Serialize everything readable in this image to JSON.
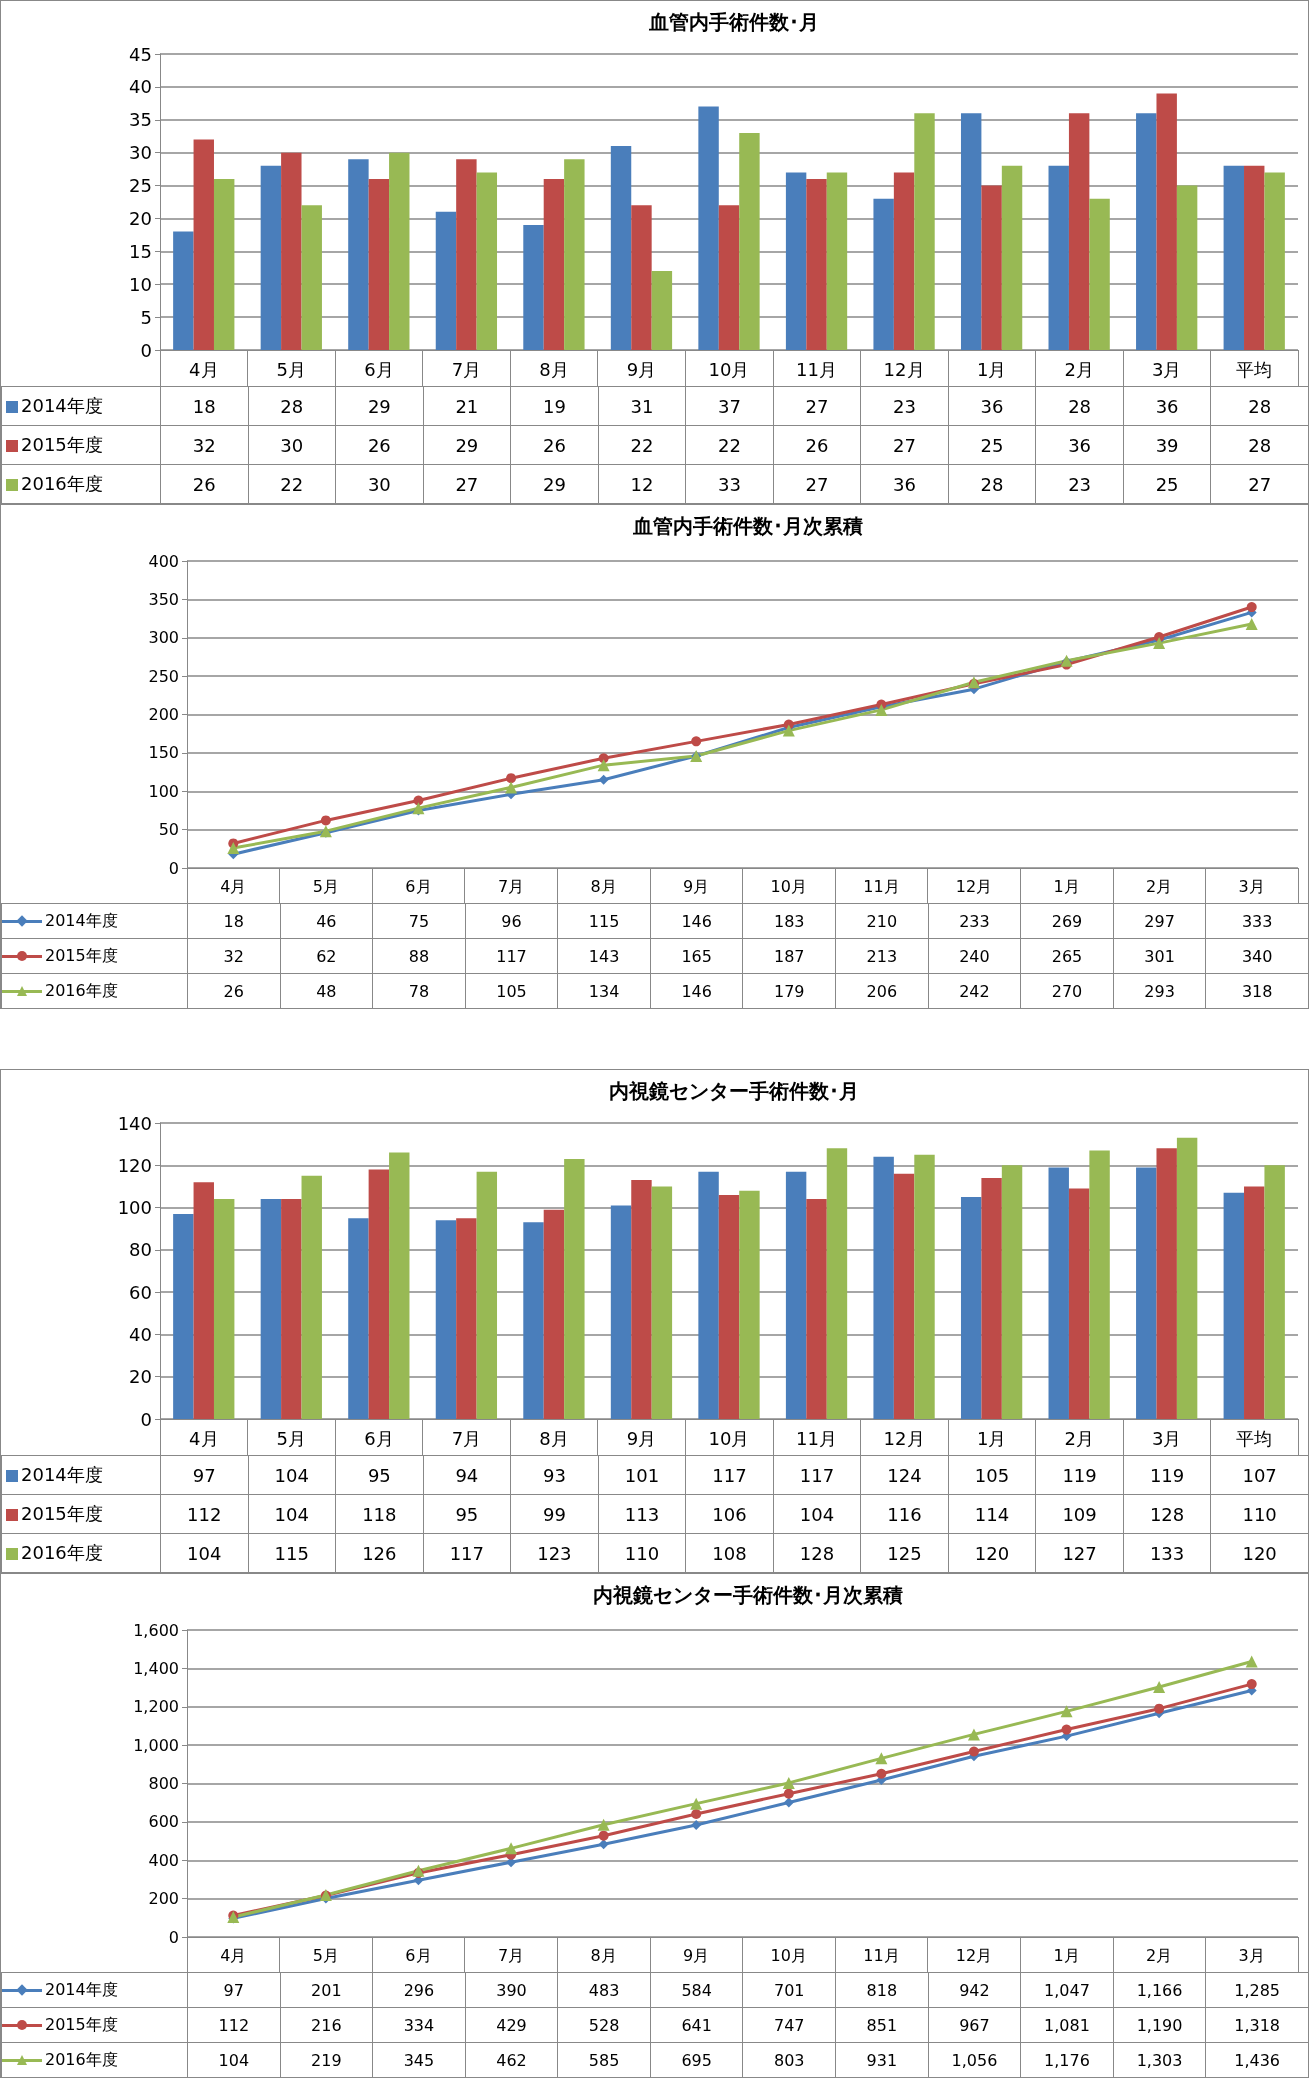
{
  "chart_data": [
    {
      "type": "bar",
      "title": "血管内手術件数･月",
      "categories": [
        "4月",
        "5月",
        "6月",
        "7月",
        "8月",
        "9月",
        "10月",
        "11月",
        "12月",
        "1月",
        "2月",
        "3月",
        "平均"
      ],
      "ylim": [
        0,
        45
      ],
      "yticks": [
        0,
        5,
        10,
        15,
        20,
        25,
        30,
        35,
        40,
        45
      ],
      "grid": "y",
      "legend": "bottom left",
      "data_labels": true,
      "series": [
        {
          "name": "2014年度",
          "color": "#4a7ebb",
          "values": [
            18,
            28,
            29,
            21,
            19,
            31,
            37,
            27,
            23,
            36,
            28,
            36,
            28
          ]
        },
        {
          "name": "2015年度",
          "color": "#be4b48",
          "values": [
            32,
            30,
            26,
            29,
            26,
            22,
            22,
            26,
            27,
            25,
            36,
            39,
            28
          ]
        },
        {
          "name": "2016年度",
          "color": "#98b954",
          "values": [
            26,
            22,
            30,
            27,
            29,
            12,
            33,
            27,
            36,
            28,
            23,
            25,
            27
          ]
        }
      ]
    },
    {
      "type": "line",
      "title": "血管内手術件数･月次累積",
      "categories": [
        "4月",
        "5月",
        "6月",
        "7月",
        "8月",
        "9月",
        "10月",
        "11月",
        "12月",
        "1月",
        "2月",
        "3月"
      ],
      "ylim": [
        0,
        400
      ],
      "yticks": [
        0,
        50,
        100,
        150,
        200,
        250,
        300,
        350,
        400
      ],
      "grid": "y",
      "legend": "bottom left",
      "data_labels": true,
      "series": [
        {
          "name": "2014年度",
          "color": "#4a7ebb",
          "marker": "diamond",
          "values": [
            18,
            46,
            75,
            96,
            115,
            146,
            183,
            210,
            233,
            269,
            297,
            333
          ]
        },
        {
          "name": "2015年度",
          "color": "#be4b48",
          "marker": "circle",
          "values": [
            32,
            62,
            88,
            117,
            143,
            165,
            187,
            213,
            240,
            265,
            301,
            340
          ]
        },
        {
          "name": "2016年度",
          "color": "#98b954",
          "marker": "triangle",
          "values": [
            26,
            48,
            78,
            105,
            134,
            146,
            179,
            206,
            242,
            270,
            293,
            318
          ]
        }
      ]
    },
    {
      "type": "bar",
      "title": "内視鏡センター手術件数･月",
      "categories": [
        "4月",
        "5月",
        "6月",
        "7月",
        "8月",
        "9月",
        "10月",
        "11月",
        "12月",
        "1月",
        "2月",
        "3月",
        "平均"
      ],
      "ylim": [
        0,
        140
      ],
      "yticks": [
        0,
        20,
        40,
        60,
        80,
        100,
        120,
        140
      ],
      "grid": "y",
      "legend": "bottom left",
      "data_labels": true,
      "series": [
        {
          "name": "2014年度",
          "color": "#4a7ebb",
          "values": [
            97,
            104,
            95,
            94,
            93,
            101,
            117,
            117,
            124,
            105,
            119,
            119,
            107
          ]
        },
        {
          "name": "2015年度",
          "color": "#be4b48",
          "values": [
            112,
            104,
            118,
            95,
            99,
            113,
            106,
            104,
            116,
            114,
            109,
            128,
            110
          ]
        },
        {
          "name": "2016年度",
          "color": "#98b954",
          "values": [
            104,
            115,
            126,
            117,
            123,
            110,
            108,
            128,
            125,
            120,
            127,
            133,
            120
          ]
        }
      ]
    },
    {
      "type": "line",
      "title": "内視鏡センター手術件数･月次累積",
      "categories": [
        "4月",
        "5月",
        "6月",
        "7月",
        "8月",
        "9月",
        "10月",
        "11月",
        "12月",
        "1月",
        "2月",
        "3月"
      ],
      "ylim": [
        0,
        1600
      ],
      "yticks": [
        0,
        200,
        400,
        600,
        800,
        {
          "value": 1000,
          "label": "1,000"
        },
        {
          "value": 1200,
          "label": "1,200"
        },
        {
          "value": 1400,
          "label": "1,400"
        },
        {
          "value": 1600,
          "label": "1,600"
        }
      ],
      "grid": "y",
      "legend": "bottom left",
      "series": [
        {
          "name": "2014年度",
          "color": "#4a7ebb",
          "marker": "diamond",
          "values": [
            97,
            201,
            296,
            390,
            483,
            584,
            701,
            818,
            942,
            1047,
            1166,
            1285
          ],
          "value_labels": [
            "97",
            "201",
            "296",
            "390",
            "483",
            "584",
            "701",
            "818",
            "942",
            "1,047",
            "1,166",
            "1,285"
          ]
        },
        {
          "name": "2015年度",
          "color": "#be4b48",
          "marker": "circle",
          "values": [
            112,
            216,
            334,
            429,
            528,
            641,
            747,
            851,
            967,
            1081,
            1190,
            1318
          ],
          "value_labels": [
            "112",
            "216",
            "334",
            "429",
            "528",
            "641",
            "747",
            "851",
            "967",
            "1,081",
            "1,190",
            "1,318"
          ]
        },
        {
          "name": "2016年度",
          "color": "#98b954",
          "marker": "triangle",
          "values": [
            104,
            219,
            345,
            462,
            585,
            695,
            803,
            931,
            1056,
            1176,
            1303,
            1436
          ],
          "value_labels": [
            "104",
            "219",
            "345",
            "462",
            "585",
            "695",
            "803",
            "931",
            "1,056",
            "1,176",
            "1,303",
            "1,436"
          ]
        }
      ]
    }
  ]
}
